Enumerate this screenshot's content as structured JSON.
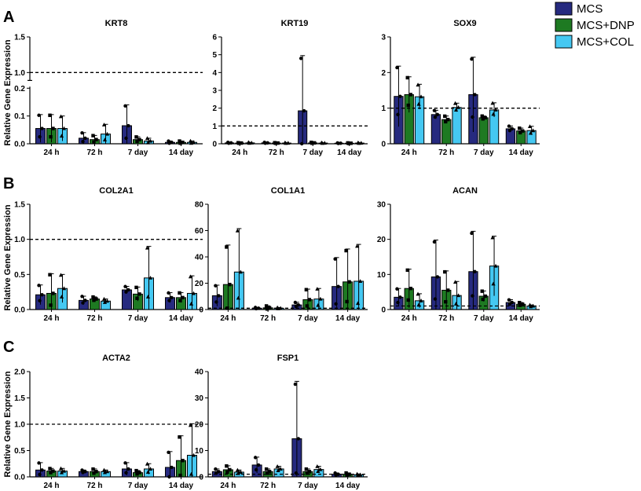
{
  "panel_labels": [
    "A",
    "B",
    "C"
  ],
  "y_axis_label": "Relative Gene Expression",
  "colors": {
    "MCS": "#262a7f",
    "MCS+DNP": "#1e7a22",
    "MCS+COL": "#45c8f2"
  },
  "legend": [
    "MCS",
    "MCS+DNP",
    "MCS+COL"
  ],
  "chart_data": [
    {
      "type": "bar",
      "title": "KRT8",
      "categories": [
        "24 h",
        "72 h",
        "7 day",
        "14 day"
      ],
      "ylim": [
        0,
        1.5
      ],
      "yticks": [
        "0.0",
        "0.1",
        "0.2",
        "1.0",
        "1.5"
      ],
      "broken_axis": true,
      "reference_line": 1.0,
      "series": [
        {
          "name": "MCS",
          "values": [
            0.055,
            0.02,
            0.065,
            0.005
          ],
          "errors": [
            0.05,
            0.02,
            0.075,
            0.005
          ]
        },
        {
          "name": "MCS+DNP",
          "values": [
            0.055,
            0.015,
            0.015,
            0.005
          ],
          "errors": [
            0.05,
            0.015,
            0.01,
            0.005
          ]
        },
        {
          "name": "MCS+COL",
          "values": [
            0.055,
            0.035,
            0.01,
            0.005
          ],
          "errors": [
            0.045,
            0.035,
            0.01,
            0.005
          ]
        }
      ]
    },
    {
      "type": "bar",
      "title": "KRT19",
      "categories": [
        "24 h",
        "72 h",
        "7 day",
        "14 day"
      ],
      "ylim": [
        0,
        6
      ],
      "yticks": [
        "0",
        "1",
        "2",
        "3",
        "4",
        "5",
        "6"
      ],
      "reference_line": 1.0,
      "series": [
        {
          "name": "MCS",
          "values": [
            0.05,
            0.05,
            1.85,
            0.03
          ],
          "errors": [
            0.03,
            0.03,
            3.1,
            0.02
          ]
        },
        {
          "name": "MCS+DNP",
          "values": [
            0.04,
            0.04,
            0.05,
            0.03
          ],
          "errors": [
            0.02,
            0.02,
            0.03,
            0.02
          ]
        },
        {
          "name": "MCS+COL",
          "values": [
            0.05,
            0.04,
            0.04,
            0.04
          ],
          "errors": [
            0.03,
            0.02,
            0.02,
            0.02
          ]
        }
      ]
    },
    {
      "type": "bar",
      "title": "SOX9",
      "categories": [
        "24 h",
        "72 h",
        "7 day",
        "14 day"
      ],
      "ylim": [
        0,
        3
      ],
      "yticks": [
        "0",
        "1",
        "2",
        "3"
      ],
      "reference_line": 1.0,
      "series": [
        {
          "name": "MCS",
          "values": [
            1.33,
            0.82,
            1.38,
            0.42
          ],
          "errors": [
            0.85,
            0.12,
            1.05,
            0.08
          ]
        },
        {
          "name": "MCS+DNP",
          "values": [
            1.38,
            0.68,
            0.73,
            0.36
          ],
          "errors": [
            0.5,
            0.1,
            0.05,
            0.08
          ]
        },
        {
          "name": "MCS+COL",
          "values": [
            1.32,
            1.02,
            0.95,
            0.37
          ],
          "errors": [
            0.35,
            0.12,
            0.2,
            0.12
          ]
        }
      ]
    },
    {
      "type": "bar",
      "title": "COL2A1",
      "categories": [
        "24 h",
        "72 h",
        "7 day",
        "14 day"
      ],
      "ylim": [
        0,
        1.5
      ],
      "yticks": [
        "0.0",
        "0.5",
        "1.0",
        "1.5"
      ],
      "reference_line": 1.0,
      "series": [
        {
          "name": "MCS",
          "values": [
            0.21,
            0.13,
            0.28,
            0.17
          ],
          "errors": [
            0.14,
            0.06,
            0.05,
            0.07
          ]
        },
        {
          "name": "MCS+DNP",
          "values": [
            0.23,
            0.15,
            0.22,
            0.17
          ],
          "errors": [
            0.28,
            0.03,
            0.1,
            0.07
          ]
        },
        {
          "name": "MCS+COL",
          "values": [
            0.3,
            0.12,
            0.45,
            0.23
          ],
          "errors": [
            0.2,
            0.03,
            0.45,
            0.25
          ]
        }
      ]
    },
    {
      "type": "bar",
      "title": "COL1A1",
      "categories": [
        "24 h",
        "72 h",
        "7 day",
        "14 day"
      ],
      "ylim": [
        0,
        80
      ],
      "yticks": [
        "0",
        "20",
        "40",
        "60",
        "80"
      ],
      "reference_line": 1.0,
      "series": [
        {
          "name": "MCS",
          "values": [
            10.5,
            1.0,
            3.5,
            17.5
          ],
          "errors": [
            8.0,
            0.6,
            2.0,
            22.0
          ]
        },
        {
          "name": "MCS+DNP",
          "values": [
            19.0,
            1.3,
            7.5,
            21.0
          ],
          "errors": [
            30.0,
            1.5,
            8.0,
            25.0
          ]
        },
        {
          "name": "MCS+COL",
          "values": [
            28.5,
            1.0,
            8.0,
            21.5
          ],
          "errors": [
            33.0,
            0.5,
            8.0,
            28.0
          ]
        }
      ]
    },
    {
      "type": "bar",
      "title": "ACAN",
      "categories": [
        "24 h",
        "72 h",
        "7 day",
        "14 day"
      ],
      "ylim": [
        0,
        30
      ],
      "yticks": [
        "0",
        "10",
        "20",
        "30"
      ],
      "reference_line": 1.0,
      "series": [
        {
          "name": "MCS",
          "values": [
            3.5,
            9.3,
            10.8,
            2.0
          ],
          "errors": [
            2.5,
            10.5,
            11.5,
            0.8
          ]
        },
        {
          "name": "MCS+DNP",
          "values": [
            6.0,
            5.5,
            3.8,
            1.5
          ],
          "errors": [
            5.5,
            5.5,
            1.5,
            0.5
          ]
        },
        {
          "name": "MCS+COL",
          "values": [
            2.5,
            4.0,
            12.4,
            1.0
          ],
          "errors": [
            2.0,
            4.0,
            8.5,
            0.3
          ]
        }
      ]
    },
    {
      "type": "bar",
      "title": "ACTA2",
      "categories": [
        "24 h",
        "72 h",
        "7 day",
        "14 day"
      ],
      "ylim": [
        0,
        2.0
      ],
      "yticks": [
        "0.0",
        "0.5",
        "1.0",
        "1.5",
        "2.0"
      ],
      "reference_line": 1.0,
      "series": [
        {
          "name": "MCS",
          "values": [
            0.13,
            0.1,
            0.15,
            0.18
          ],
          "errors": [
            0.14,
            0.03,
            0.12,
            0.3
          ]
        },
        {
          "name": "MCS+DNP",
          "values": [
            0.11,
            0.1,
            0.08,
            0.31
          ],
          "errors": [
            0.05,
            0.05,
            0.04,
            0.47
          ]
        },
        {
          "name": "MCS+COL",
          "values": [
            0.11,
            0.1,
            0.15,
            0.41
          ],
          "errors": [
            0.05,
            0.03,
            0.1,
            0.6
          ]
        }
      ]
    },
    {
      "type": "bar",
      "title": "FSP1",
      "categories": [
        "24 h",
        "72 h",
        "7 day",
        "14 day"
      ],
      "ylim": [
        0,
        40
      ],
      "yticks": [
        "0",
        "10",
        "20",
        "30",
        "40"
      ],
      "reference_line": 1.0,
      "series": [
        {
          "name": "MCS",
          "values": [
            2.0,
            4.5,
            14.5,
            1.0
          ],
          "errors": [
            1.0,
            3.0,
            21.8,
            0.5
          ]
        },
        {
          "name": "MCS+DNP",
          "values": [
            2.7,
            2.0,
            2.0,
            1.0
          ],
          "errors": [
            1.5,
            1.0,
            1.0,
            0.5
          ]
        },
        {
          "name": "MCS+COL",
          "values": [
            1.8,
            3.0,
            2.8,
            0.8
          ],
          "errors": [
            0.8,
            1.0,
            1.2,
            0.3
          ]
        }
      ]
    }
  ]
}
